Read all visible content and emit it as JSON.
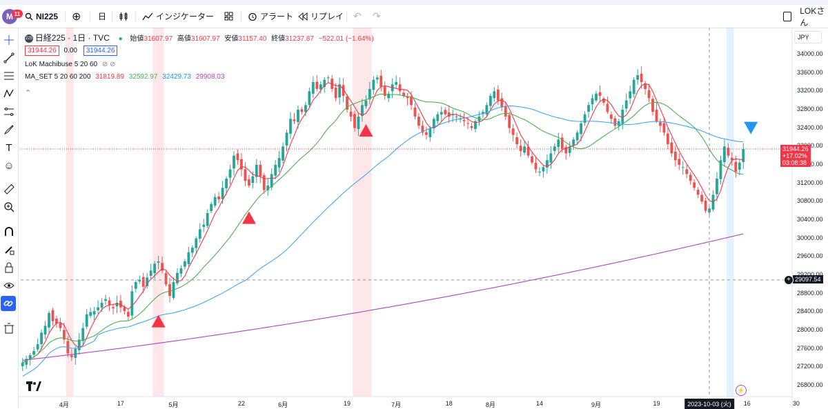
{
  "header": {
    "badge_count": "11",
    "logo_letter": "M",
    "symbol": "NI225",
    "interval": "日",
    "indicators_label": "インジケーター",
    "alert_label": "アラート",
    "replay_label": "リプレイ",
    "user_label": "LOKさん"
  },
  "legend": {
    "title": "日経225 · 1日 · TVC",
    "symbol_badge": "225",
    "open_label": "始値",
    "open": "31607.97",
    "high_label": "高値",
    "high": "31607.97",
    "low_label": "安値",
    "low": "31157.40",
    "close_label": "終値",
    "close": "31237.87",
    "change": "−522.01 (−1.64%)",
    "bid": "31944.26",
    "spread": "0.00",
    "ask": "31944.26",
    "ind1": "LoK Machibuse 5 20 60",
    "ind2_name": "MA_SET 5 20 60 200",
    "ind2_v1": "31819.89",
    "ind2_v2": "32592.97",
    "ind2_v3": "32429.73",
    "ind2_v4": "29908.03"
  },
  "price_axis": {
    "currency": "JPY",
    "current_price": "31944.26",
    "current_pct": "+17.02%",
    "countdown": "03:08:38",
    "crosshair_price": "29097.54"
  },
  "colors": {
    "up": "#26a69a",
    "down": "#ef5350",
    "ma5": "#f23645",
    "ma20": "#4caf50",
    "ma60": "#42a5f5",
    "ma200": "#ab47bc",
    "signal_buy": "#f23645",
    "signal_sell": "#2196f3"
  },
  "chart_data": {
    "type": "candlestick",
    "ylim": [
      26600,
      34200
    ],
    "ytick_labels": [
      "26800.00",
      "27200.00",
      "27600.00",
      "28000.00",
      "28400.00",
      "28800.00",
      "29200.00",
      "29600.00",
      "30000.00",
      "30400.00",
      "30800.00",
      "31200.00",
      "31600.00",
      "32000.00",
      "32400.00",
      "32800.00",
      "33200.00",
      "33600.00",
      "34000.00"
    ],
    "xtick_labels": [
      {
        "label": "4月",
        "i": 11
      },
      {
        "label": "17",
        "i": 26
      },
      {
        "label": "5月",
        "i": 40
      },
      {
        "label": "22",
        "i": 58
      },
      {
        "label": "6月",
        "i": 69
      },
      {
        "label": "19",
        "i": 86
      },
      {
        "label": "7月",
        "i": 99
      },
      {
        "label": "18",
        "i": 113
      },
      {
        "label": "8月",
        "i": 124
      },
      {
        "label": "14",
        "i": 137
      },
      {
        "label": "9月",
        "i": 152
      },
      {
        "label": "19",
        "i": 168
      },
      {
        "label": "2023-10-03 (火)",
        "i": 182
      },
      {
        "label": "16",
        "i": 192
      },
      {
        "label": "30",
        "i": 205
      }
    ],
    "crosshair": {
      "date_label": "2023-10-03 (火)",
      "i": 182,
      "price": 29097.54
    },
    "last_price": 31944.26,
    "closes": [
      27300,
      27380,
      27460,
      27550,
      27700,
      27950,
      28100,
      28380,
      28200,
      28150,
      28050,
      27800,
      27500,
      27420,
      27600,
      27800,
      28050,
      28350,
      28400,
      28420,
      28500,
      28600,
      28680,
      28550,
      28480,
      28600,
      28500,
      28420,
      28300,
      28850,
      29050,
      29100,
      28950,
      29150,
      29300,
      29450,
      29500,
      29300,
      29000,
      28750,
      29050,
      29250,
      29350,
      29500,
      29700,
      29800,
      30000,
      30200,
      30300,
      30550,
      30750,
      30900,
      30850,
      31100,
      31300,
      31500,
      31800,
      31700,
      31500,
      31250,
      31150,
      31350,
      31600,
      31350,
      31050,
      31150,
      31400,
      31600,
      31750,
      32000,
      32300,
      32600,
      32550,
      32800,
      32750,
      32900,
      33200,
      33400,
      33250,
      33350,
      33450,
      33500,
      33250,
      33050,
      33350,
      33100,
      32800,
      32650,
      32400,
      32650,
      32900,
      33000,
      33250,
      33450,
      33500,
      33300,
      33100,
      33150,
      33350,
      33400,
      33200,
      33100,
      33050,
      32900,
      32650,
      32450,
      32300,
      32250,
      32400,
      32600,
      32700,
      32750,
      32700,
      32650,
      32700,
      32650,
      32600,
      32550,
      32500,
      32400,
      32550,
      32650,
      32750,
      32900,
      33100,
      33200,
      33000,
      32850,
      32650,
      32400,
      32250,
      32050,
      31900,
      32000,
      31800,
      31650,
      31500,
      31450,
      31550,
      31700,
      31850,
      32000,
      32150,
      31950,
      31850,
      32000,
      32150,
      32300,
      32500,
      32700,
      32900,
      33050,
      33150,
      33100,
      32950,
      32750,
      32600,
      32450,
      32550,
      32800,
      33000,
      33200,
      33450,
      33550,
      33400,
      33250,
      33050,
      32750,
      32550,
      32450,
      32300,
      32050,
      31850,
      31700,
      31600,
      31550,
      31400,
      31250,
      31100,
      30950,
      30800,
      30600,
      30650,
      30950,
      31300,
      31700,
      32000,
      31800,
      31700,
      31450,
      31650,
      31944
    ],
    "series": [
      {
        "name": "MA5"
      },
      {
        "name": "MA20"
      },
      {
        "name": "MA60"
      },
      {
        "name": "MA200"
      }
    ],
    "ma200": {
      "start": 27350,
      "end": 30100
    },
    "highlight_bands": [
      {
        "from": 12,
        "to": 13,
        "color": "red"
      },
      {
        "from": 35,
        "to": 37,
        "color": "red"
      },
      {
        "from": 88,
        "to": 92,
        "color": "red"
      },
      {
        "from": 187,
        "to": 188,
        "color": "blue"
      }
    ],
    "signals": [
      {
        "i": 36,
        "price": 28200,
        "dir": "up"
      },
      {
        "i": 60,
        "price": 30450,
        "dir": "up"
      },
      {
        "i": 91,
        "price": 32350,
        "dir": "up"
      },
      {
        "i": 193,
        "price": 32400,
        "dir": "down"
      }
    ]
  }
}
